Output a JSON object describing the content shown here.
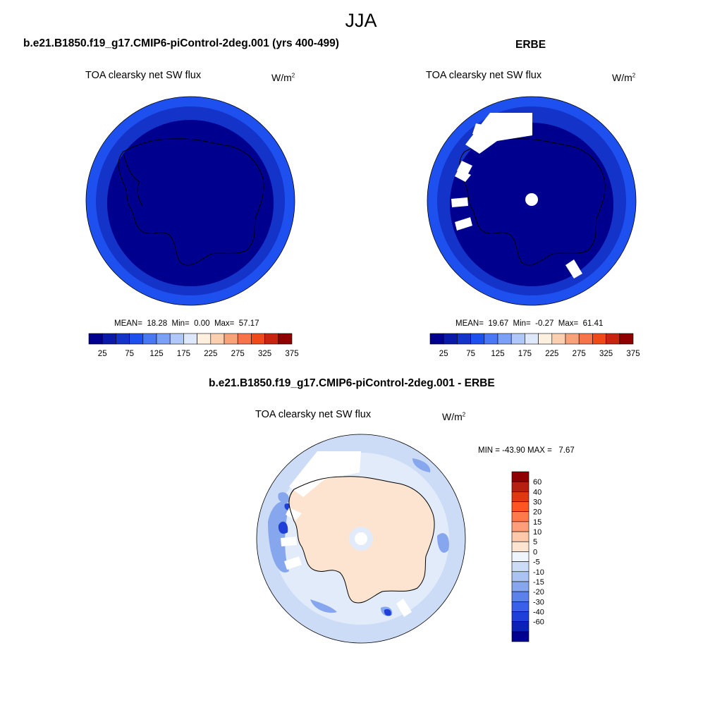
{
  "figure": {
    "title": "JJA"
  },
  "panels": [
    {
      "title": "b.e21.B1850.f19_g17.CMIP6-piControl-2deg.001 (yrs 400-499)",
      "variable": "TOA clearsky net SW flux",
      "units": "W/m",
      "units_sup": "2",
      "stats": {
        "mean_label": "MEAN=",
        "mean": "18.28",
        "min_label": "Min=",
        "min": "0.00",
        "max_label": "Max=",
        "max": "57.17"
      }
    },
    {
      "title": "ERBE",
      "variable": "TOA clearsky net SW flux",
      "units": "W/m",
      "units_sup": "2",
      "stats": {
        "mean_label": "MEAN=",
        "mean": "19.67",
        "min_label": "Min=",
        "min": "-0.27",
        "max_label": "Max=",
        "max": "61.41"
      }
    },
    {
      "title": "b.e21.B1850.f19_g17.CMIP6-piControl-2deg.001 - ERBE",
      "variable": "TOA clearsky net SW flux",
      "units": "W/m",
      "units_sup": "2",
      "stats_text": "MIN = -43.90 MAX =   7.67"
    }
  ],
  "colorbars": {
    "field": {
      "colors": [
        "#00008f",
        "#0a1aa8",
        "#1433c8",
        "#1e50f0",
        "#4a78f5",
        "#7aa0f7",
        "#afc8f9",
        "#dde8fb",
        "#fff0e0",
        "#fccfb0",
        "#f9a27a",
        "#f7744a",
        "#f04a18",
        "#c82410",
        "#8f0000"
      ],
      "tick_labels": [
        "25",
        "75",
        "125",
        "175",
        "225",
        "275",
        "325",
        "375"
      ]
    },
    "difference": {
      "colors": [
        "#8f0000",
        "#b52010",
        "#e03810",
        "#ff5522",
        "#ff7a4a",
        "#ff9f7a",
        "#ffc8a8",
        "#fce4d0",
        "#f0f4fb",
        "#cddcf6",
        "#aac3f2",
        "#86a6ee",
        "#5a82ea",
        "#3860e8",
        "#1e40d8",
        "#0a22b8",
        "#00008f"
      ],
      "tick_labels": [
        "60",
        "40",
        "30",
        "20",
        "15",
        "10",
        "5",
        "0",
        "-5",
        "-10",
        "-15",
        "-20",
        "-30",
        "-40",
        "-60"
      ]
    }
  },
  "map_colors": {
    "model": {
      "outer": "#1e50f0",
      "ring": "#1433c8",
      "inner": "#00008f",
      "coast": "#000000",
      "missing": "#ffffff"
    },
    "erbe": {
      "outer": "#1e50f0",
      "ring": "#1433c8",
      "inner": "#00008f",
      "coast": "#000000",
      "missing": "#ffffff"
    },
    "diff": {
      "ocean": "#cddcf6",
      "pale": "#e2ebfa",
      "land": "#fce4d0",
      "mid": "#86a6ee",
      "strong": "#1e40d8",
      "missing": "#ffffff"
    }
  }
}
